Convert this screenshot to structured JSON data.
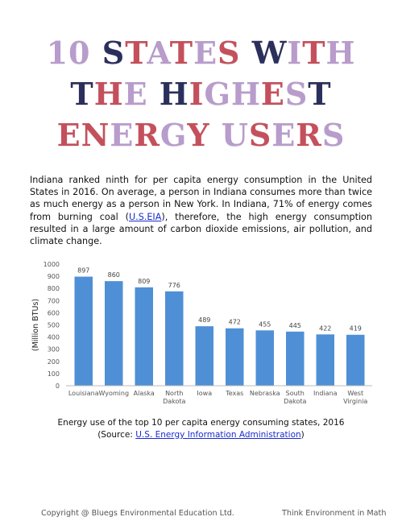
{
  "title": {
    "line1": [
      {
        "text": "10 ",
        "color": "#b89ccc"
      },
      {
        "text": "S",
        "color": "#2b2f5c"
      },
      {
        "text": "T",
        "color": "#c4505c"
      },
      {
        "text": "A",
        "color": "#b89ccc"
      },
      {
        "text": "T",
        "color": "#c4505c"
      },
      {
        "text": "E",
        "color": "#b89ccc"
      },
      {
        "text": "S",
        "color": "#c4505c"
      },
      {
        "text": " W",
        "color": "#2b2f5c"
      },
      {
        "text": "I",
        "color": "#b89ccc"
      },
      {
        "text": "T",
        "color": "#c4505c"
      },
      {
        "text": "H",
        "color": "#b89ccc"
      }
    ],
    "line2": [
      {
        "text": "T",
        "color": "#2b2f5c"
      },
      {
        "text": "H",
        "color": "#c4505c"
      },
      {
        "text": "E",
        "color": "#b89ccc"
      },
      {
        "text": " H",
        "color": "#2b2f5c"
      },
      {
        "text": "I",
        "color": "#c4505c"
      },
      {
        "text": "G",
        "color": "#b89ccc"
      },
      {
        "text": "H",
        "color": "#b89ccc"
      },
      {
        "text": "E",
        "color": "#c4505c"
      },
      {
        "text": "S",
        "color": "#b89ccc"
      },
      {
        "text": "T",
        "color": "#2b2f5c"
      }
    ],
    "line3": [
      {
        "text": "E",
        "color": "#c4505c"
      },
      {
        "text": "N",
        "color": "#c4505c"
      },
      {
        "text": "E",
        "color": "#b89ccc"
      },
      {
        "text": "R",
        "color": "#c4505c"
      },
      {
        "text": "G",
        "color": "#b89ccc"
      },
      {
        "text": "Y",
        "color": "#c4505c"
      },
      {
        "text": " U",
        "color": "#b89ccc"
      },
      {
        "text": "S",
        "color": "#c4505c"
      },
      {
        "text": "E",
        "color": "#b89ccc"
      },
      {
        "text": "R",
        "color": "#c4505c"
      },
      {
        "text": "S",
        "color": "#b89ccc"
      }
    ]
  },
  "intro": {
    "part1": "Indiana ranked ninth for per capita energy consumption in the United States in 2016. On average, a person in Indiana consumes more than twice as much energy as a person in New York. In Indiana, 71% of energy comes from burning coal (",
    "link": "U.S.EIA",
    "part2": "), therefore, the high energy consumption resulted in a large amount of carbon dioxide emissions, air pollution, and climate change."
  },
  "caption": {
    "line1": "Energy use of the top 10 per capita energy consuming states, 2016",
    "source_prefix": "(Source: ",
    "source_link": "U.S. Energy Information Administration",
    "source_suffix": ")"
  },
  "footer": {
    "left": "Copyright @ Bluegs Environmental Education Ltd.",
    "right": "Think Environment in Math"
  },
  "chart_data": {
    "type": "bar",
    "categories": [
      [
        "Louisiana"
      ],
      [
        "Wyoming"
      ],
      [
        "Alaska"
      ],
      [
        "North",
        "Dakota"
      ],
      [
        "Iowa"
      ],
      [
        "Texas"
      ],
      [
        "Nebraska"
      ],
      [
        "South",
        "Dakota"
      ],
      [
        "Indiana"
      ],
      [
        "West",
        "Virginia"
      ]
    ],
    "values": [
      897,
      860,
      809,
      776,
      489,
      472,
      455,
      445,
      422,
      419
    ],
    "ylabel": "(Million BTUs)",
    "xlabel": "",
    "title": "",
    "ylim": [
      0,
      1000
    ],
    "yticks": [
      0,
      100,
      200,
      300,
      400,
      500,
      600,
      700,
      800,
      900,
      1000
    ],
    "grid": false,
    "bar_color": "#4f8fd6",
    "data_labels": true
  }
}
